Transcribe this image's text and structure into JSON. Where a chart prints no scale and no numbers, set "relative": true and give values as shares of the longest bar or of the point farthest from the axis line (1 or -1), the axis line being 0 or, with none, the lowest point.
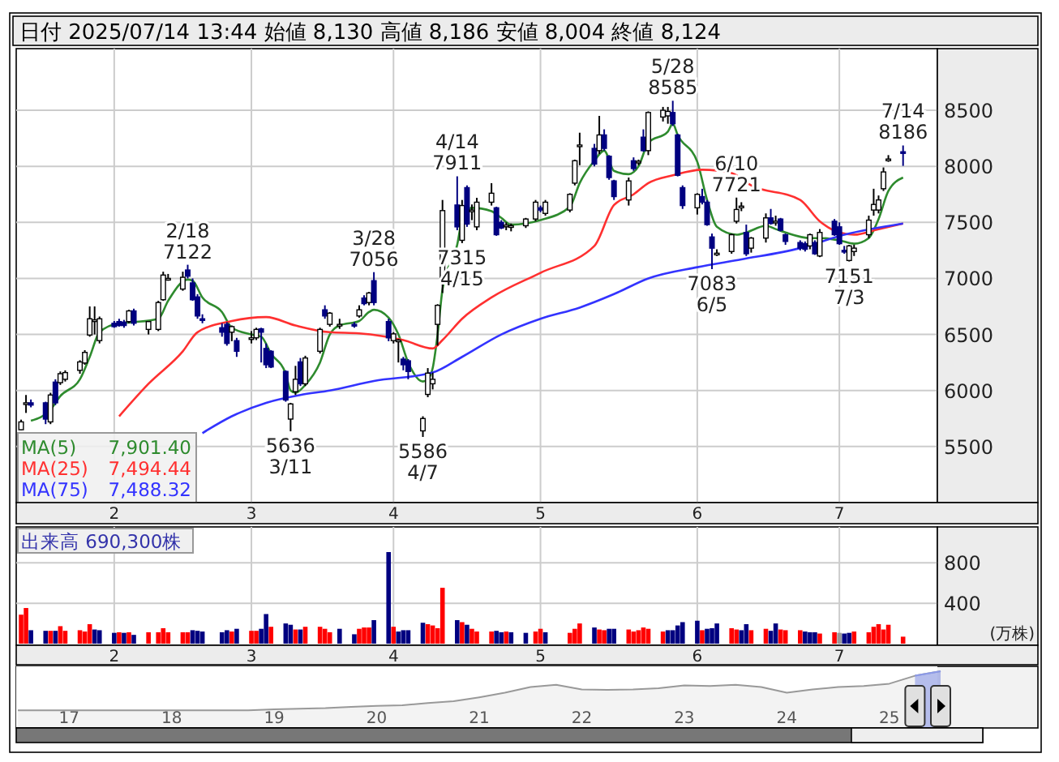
{
  "chart_data": [
    {
      "type": "candlestick",
      "title": "日付 2025/07/14 13:44 始値 8,130 高値 8,186 安値 8,004 終値 8,124",
      "x": [
        "2025-01-15",
        "2025-01-16",
        "2025-01-17",
        "2025-01-20",
        "2025-01-21",
        "2025-01-22",
        "2025-01-23",
        "2025-01-24",
        "2025-01-27",
        "2025-01-28",
        "2025-01-29",
        "2025-01-30",
        "2025-01-31",
        "2025-02-03",
        "2025-02-04",
        "2025-02-05",
        "2025-02-06",
        "2025-02-07",
        "2025-02-10",
        "2025-02-12",
        "2025-02-13",
        "2025-02-14",
        "2025-02-17",
        "2025-02-18",
        "2025-02-19",
        "2025-02-20",
        "2025-02-21",
        "2025-02-25",
        "2025-02-26",
        "2025-02-27",
        "2025-02-28",
        "2025-03-03",
        "2025-03-04",
        "2025-03-05",
        "2025-03-06",
        "2025-03-07",
        "2025-03-10",
        "2025-03-11",
        "2025-03-12",
        "2025-03-13",
        "2025-03-14",
        "2025-03-17",
        "2025-03-18",
        "2025-03-19",
        "2025-03-21",
        "2025-03-24",
        "2025-03-25",
        "2025-03-26",
        "2025-03-27",
        "2025-03-28",
        "2025-03-31",
        "2025-04-01",
        "2025-04-02",
        "2025-04-03",
        "2025-04-04",
        "2025-04-07",
        "2025-04-08",
        "2025-04-09",
        "2025-04-10",
        "2025-04-11",
        "2025-04-14",
        "2025-04-15",
        "2025-04-16",
        "2025-04-17",
        "2025-04-18",
        "2025-04-21",
        "2025-04-22",
        "2025-04-23",
        "2025-04-24",
        "2025-04-25",
        "2025-04-28",
        "2025-04-30",
        "2025-05-01",
        "2025-05-02",
        "2025-05-07",
        "2025-05-08",
        "2025-05-09",
        "2025-05-12",
        "2025-05-13",
        "2025-05-14",
        "2025-05-15",
        "2025-05-16",
        "2025-05-19",
        "2025-05-20",
        "2025-05-21",
        "2025-05-22",
        "2025-05-23",
        "2025-05-26",
        "2025-05-27",
        "2025-05-28",
        "2025-05-29",
        "2025-05-30",
        "2025-06-02",
        "2025-06-03",
        "2025-06-04",
        "2025-06-05",
        "2025-06-06",
        "2025-06-09",
        "2025-06-10",
        "2025-06-11",
        "2025-06-12",
        "2025-06-13",
        "2025-06-16",
        "2025-06-17",
        "2025-06-18",
        "2025-06-19",
        "2025-06-20",
        "2025-06-23",
        "2025-06-24",
        "2025-06-25",
        "2025-06-26",
        "2025-06-27",
        "2025-06-30",
        "2025-07-01",
        "2025-07-02",
        "2025-07-03",
        "2025-07-04",
        "2025-07-07",
        "2025-07-08",
        "2025-07-09",
        "2025-07-10",
        "2025-07-11",
        "2025-07-14"
      ],
      "ohlc": [
        [
          5650,
          5740,
          5645,
          5720
        ],
        [
          5880,
          5960,
          5800,
          5890
        ],
        [
          5890,
          5920,
          5850,
          5870
        ],
        [
          5890,
          5900,
          5700,
          5745
        ],
        [
          5720,
          5980,
          5700,
          5960
        ],
        [
          6075,
          6100,
          5870,
          5890
        ],
        [
          6070,
          6170,
          6050,
          6150
        ],
        [
          6100,
          6180,
          6080,
          6160
        ],
        [
          6180,
          6270,
          6150,
          6255
        ],
        [
          6245,
          6360,
          6230,
          6340
        ],
        [
          6495,
          6750,
          6480,
          6640
        ],
        [
          6620,
          6750,
          6500,
          6630
        ],
        [
          6445,
          6660,
          6420,
          6640
        ],
        [
          6600,
          6620,
          6560,
          6570
        ],
        [
          6615,
          6640,
          6570,
          6580
        ],
        [
          6610,
          6630,
          6560,
          6580
        ],
        [
          6615,
          6720,
          6600,
          6710
        ],
        [
          6710,
          6730,
          6580,
          6600
        ],
        [
          6545,
          6620,
          6500,
          6615
        ],
        [
          6545,
          6800,
          6530,
          6785
        ],
        [
          6810,
          7060,
          6800,
          7030
        ],
        [
          7000,
          7040,
          6980,
          7000
        ],
        [
          6905,
          7060,
          6890,
          7010
        ],
        [
          7075,
          7122,
          7000,
          7020
        ],
        [
          6960,
          7000,
          6800,
          6810
        ],
        [
          6835,
          6860,
          6640,
          6665
        ],
        [
          6640,
          6680,
          6600,
          6630
        ],
        [
          6560,
          6600,
          6480,
          6520
        ],
        [
          6590,
          6610,
          6400,
          6420
        ],
        [
          6520,
          6580,
          6440,
          6570
        ],
        [
          6445,
          6470,
          6300,
          6350
        ],
        [
          6460,
          6530,
          6420,
          6470
        ],
        [
          6470,
          6560,
          6450,
          6545
        ],
        [
          6550,
          6560,
          6250,
          6520
        ],
        [
          6375,
          6420,
          6200,
          6230
        ],
        [
          6350,
          6360,
          6200,
          6210
        ],
        [
          6170,
          6180,
          5900,
          5915
        ],
        [
          5745,
          5890,
          5636,
          5880
        ],
        [
          5990,
          6220,
          5960,
          6100
        ],
        [
          6255,
          6290,
          6040,
          6060
        ],
        [
          6060,
          6310,
          6040,
          6290
        ],
        [
          6350,
          6560,
          6330,
          6545
        ],
        [
          6720,
          6760,
          6640,
          6665
        ],
        [
          6590,
          6700,
          6570,
          6690
        ],
        [
          6580,
          6640,
          6550,
          6590
        ],
        [
          6590,
          6610,
          6560,
          6575
        ],
        [
          6665,
          6760,
          6650,
          6720
        ],
        [
          6825,
          6850,
          6760,
          6775
        ],
        [
          6785,
          6880,
          6760,
          6870
        ],
        [
          6980,
          7056,
          6760,
          6785
        ],
        [
          6615,
          6640,
          6440,
          6470
        ],
        [
          6445,
          6520,
          6420,
          6505
        ],
        [
          6445,
          6460,
          6250,
          6450
        ],
        [
          6280,
          6300,
          6180,
          6230
        ],
        [
          6265,
          6280,
          6100,
          6170
        ],
        [
          5640,
          5770,
          5586,
          5750
        ],
        [
          5965,
          6200,
          5940,
          6155
        ],
        [
          6060,
          6160,
          6010,
          6100
        ],
        [
          6590,
          6770,
          6400,
          6760
        ],
        [
          6955,
          7700,
          6870,
          7605
        ],
        [
          7655,
          7911,
          7430,
          7460
        ],
        [
          7340,
          7700,
          7315,
          7650
        ],
        [
          7810,
          7830,
          7460,
          7485
        ],
        [
          7600,
          7660,
          7520,
          7610
        ],
        [
          7460,
          7720,
          7430,
          7680
        ],
        [
          7680,
          7850,
          7650,
          7760
        ],
        [
          7630,
          7640,
          7380,
          7390
        ],
        [
          7500,
          7520,
          7440,
          7450
        ],
        [
          7470,
          7500,
          7430,
          7475
        ],
        [
          7460,
          7490,
          7420,
          7470
        ],
        [
          7470,
          7540,
          7450,
          7530
        ],
        [
          7530,
          7700,
          7510,
          7680
        ],
        [
          7630,
          7650,
          7590,
          7610
        ],
        [
          7580,
          7700,
          7560,
          7680
        ],
        [
          7610,
          7760,
          7590,
          7750
        ],
        [
          7850,
          8060,
          7830,
          8050
        ],
        [
          8180,
          8300,
          8010,
          8190
        ],
        [
          8160,
          8200,
          8000,
          8020
        ],
        [
          8140,
          8450,
          8110,
          8280
        ],
        [
          8280,
          8330,
          8140,
          8160
        ],
        [
          8090,
          8100,
          7880,
          7900
        ],
        [
          7870,
          7880,
          7700,
          7730
        ],
        [
          7700,
          7900,
          7650,
          7870
        ],
        [
          8050,
          8080,
          7960,
          7980
        ],
        [
          8040,
          8060,
          8010,
          8045
        ],
        [
          8260,
          8330,
          8130,
          8140
        ],
        [
          8140,
          8490,
          8100,
          8480
        ],
        [
          8440,
          8530,
          8400,
          8500
        ],
        [
          8450,
          8530,
          8380,
          8490
        ],
        [
          8480,
          8585,
          8360,
          8380
        ],
        [
          8280,
          8290,
          7910,
          7920
        ],
        [
          7810,
          7830,
          7620,
          7650
        ],
        [
          7630,
          7760,
          7570,
          7750
        ],
        [
          7730,
          7800,
          7660,
          7680
        ],
        [
          7680,
          7700,
          7470,
          7480
        ],
        [
          7370,
          7400,
          7083,
          7270
        ],
        [
          7220,
          7260,
          7200,
          7225
        ],
        [
          7240,
          7400,
          7220,
          7390
        ],
        [
          7510,
          7721,
          7490,
          7615
        ],
        [
          7640,
          7680,
          7600,
          7645
        ],
        [
          7410,
          7480,
          7200,
          7220
        ],
        [
          7270,
          7370,
          7230,
          7360
        ],
        [
          7360,
          7580,
          7320,
          7540
        ],
        [
          7540,
          7620,
          7480,
          7490
        ],
        [
          7500,
          7560,
          7470,
          7510
        ],
        [
          7530,
          7540,
          7420,
          7430
        ],
        [
          7390,
          7400,
          7300,
          7330
        ],
        [
          7320,
          7340,
          7250,
          7270
        ],
        [
          7310,
          7330,
          7240,
          7260
        ],
        [
          7290,
          7400,
          7260,
          7390
        ],
        [
          7320,
          7340,
          7210,
          7220
        ],
        [
          7200,
          7440,
          7190,
          7410
        ],
        [
          7510,
          7530,
          7380,
          7390
        ],
        [
          7460,
          7500,
          7300,
          7310
        ],
        [
          7250,
          7290,
          7220,
          7240
        ],
        [
          7160,
          7300,
          7151,
          7290
        ],
        [
          7240,
          7300,
          7200,
          7270
        ],
        [
          7390,
          7560,
          7360,
          7520
        ],
        [
          7610,
          7800,
          7560,
          7660
        ],
        [
          7610,
          7740,
          7580,
          7700
        ],
        [
          7800,
          7990,
          7780,
          7950
        ],
        [
          8060,
          8100,
          8040,
          8065
        ],
        [
          8130,
          8186,
          8004,
          8124
        ]
      ],
      "series": [
        {
          "name": "MA(5) 7,901.40",
          "type": "line",
          "color": "#2e8b2e",
          "x": [
            "2025-01-17",
            "2025-01-21",
            "2025-01-23",
            "2025-01-27",
            "2025-01-29",
            "2025-01-31",
            "2025-02-04",
            "2025-02-07",
            "2025-02-12",
            "2025-02-14",
            "2025-02-18",
            "2025-02-19",
            "2025-02-21",
            "2025-02-25",
            "2025-02-27",
            "2025-03-03",
            "2025-03-05",
            "2025-03-07",
            "2025-03-10",
            "2025-03-11",
            "2025-03-12",
            "2025-03-14",
            "2025-03-17",
            "2025-03-19",
            "2025-03-21",
            "2025-03-25",
            "2025-03-27",
            "2025-03-28",
            "2025-03-31",
            "2025-04-02",
            "2025-04-04",
            "2025-04-07",
            "2025-04-08",
            "2025-04-09",
            "2025-04-10",
            "2025-04-11",
            "2025-04-14",
            "2025-04-15",
            "2025-04-17",
            "2025-04-21",
            "2025-04-23",
            "2025-04-25",
            "2025-05-01",
            "2025-05-07",
            "2025-05-09",
            "2025-05-12",
            "2025-05-14",
            "2025-05-16",
            "2025-05-19",
            "2025-05-21",
            "2025-05-23",
            "2025-05-27",
            "2025-05-28",
            "2025-05-29",
            "2025-06-02",
            "2025-06-04",
            "2025-06-06",
            "2025-06-10",
            "2025-06-12",
            "2025-06-16",
            "2025-06-18",
            "2025-06-20",
            "2025-06-25",
            "2025-06-27",
            "2025-07-01",
            "2025-07-04",
            "2025-07-07",
            "2025-07-09",
            "2025-07-11",
            "2025-07-14"
          ],
          "values": [
            5730,
            5830,
            5950,
            6100,
            6300,
            6520,
            6600,
            6610,
            6640,
            6800,
            6990,
            6980,
            6830,
            6700,
            6560,
            6500,
            6480,
            6330,
            6150,
            6000,
            5980,
            6050,
            6250,
            6500,
            6580,
            6620,
            6700,
            6720,
            6650,
            6500,
            6250,
            6080,
            6100,
            6200,
            6500,
            6900,
            7300,
            7520,
            7630,
            7600,
            7540,
            7480,
            7520,
            7640,
            7850,
            8050,
            8140,
            7960,
            7930,
            8000,
            8210,
            8310,
            8380,
            8280,
            8040,
            7700,
            7460,
            7390,
            7410,
            7470,
            7440,
            7410,
            7360,
            7360,
            7340,
            7310,
            7360,
            7530,
            7780,
            7900
          ]
        },
        {
          "name": "MA(25) 7,494.44",
          "type": "line",
          "color": "#ff3030",
          "x": [
            "2025-02-04",
            "2025-02-10",
            "2025-02-17",
            "2025-02-20",
            "2025-02-27",
            "2025-03-06",
            "2025-03-12",
            "2025-03-19",
            "2025-03-25",
            "2025-04-03",
            "2025-04-09",
            "2025-04-11",
            "2025-04-15",
            "2025-04-21",
            "2025-05-01",
            "2025-05-12",
            "2025-05-16",
            "2025-05-20",
            "2025-05-23",
            "2025-05-28",
            "2025-06-03",
            "2025-06-09",
            "2025-06-13",
            "2025-06-23",
            "2025-06-27",
            "2025-07-01",
            "2025-07-04",
            "2025-07-09",
            "2025-07-14"
          ],
          "values": [
            5770,
            6060,
            6350,
            6520,
            6620,
            6655,
            6580,
            6520,
            6510,
            6450,
            6375,
            6450,
            6640,
            6830,
            7050,
            7290,
            7655,
            7750,
            7850,
            7920,
            7970,
            7940,
            7830,
            7700,
            7510,
            7410,
            7390,
            7440,
            7490
          ]
        },
        {
          "name": "MA(75) 7,488.32",
          "type": "line",
          "color": "#3333ff",
          "x": [
            "2025-02-21",
            "2025-02-27",
            "2025-03-06",
            "2025-03-13",
            "2025-03-19",
            "2025-03-28",
            "2025-04-09",
            "2025-04-15",
            "2025-04-23",
            "2025-05-01",
            "2025-05-09",
            "2025-05-16",
            "2025-05-23",
            "2025-06-02",
            "2025-06-11",
            "2025-06-23",
            "2025-07-02",
            "2025-07-14"
          ],
          "values": [
            5620,
            5770,
            5890,
            5960,
            6000,
            6085,
            6160,
            6300,
            6500,
            6640,
            6740,
            6860,
            7000,
            7100,
            7170,
            7270,
            7390,
            7490
          ]
        }
      ],
      "xlim": [
        "2025-01-14",
        "2025-07-21"
      ],
      "ylim": [
        5000,
        9050
      ],
      "yticks": [
        5500,
        6000,
        6500,
        7000,
        7500,
        8000,
        8500
      ],
      "xticks": [
        {
          "value": "2025-02-03",
          "label": "2"
        },
        {
          "value": "2025-03-03",
          "label": "3"
        },
        {
          "value": "2025-04-01",
          "label": "4"
        },
        {
          "value": "2025-05-01",
          "label": "5"
        },
        {
          "value": "2025-06-02",
          "label": "6"
        },
        {
          "value": "2025-07-01",
          "label": "7"
        }
      ],
      "grid": true,
      "legend": "bottom left",
      "annotations": [
        {
          "text": "2/18\n7122",
          "x": "2025-02-18",
          "y": 7122
        },
        {
          "text": "5636\n3/11",
          "x": "2025-03-11",
          "y": 5636
        },
        {
          "text": "3/28\n7056",
          "x": "2025-03-28",
          "y": 7056
        },
        {
          "text": "5586\n4/7",
          "x": "2025-04-07",
          "y": 5586
        },
        {
          "text": "4/14\n7911",
          "x": "2025-04-14",
          "y": 7911
        },
        {
          "text": "7315\n4/15",
          "x": "2025-04-15",
          "y": 7315
        },
        {
          "text": "5/28\n8585",
          "x": "2025-05-28",
          "y": 8585
        },
        {
          "text": "7083\n6/5",
          "x": "2025-06-05",
          "y": 7083
        },
        {
          "text": "6/10\n7721",
          "x": "2025-06-10",
          "y": 7721
        },
        {
          "text": "7151\n7/3",
          "x": "2025-07-03",
          "y": 7151
        },
        {
          "text": "7/14\n8186",
          "x": "2025-07-14",
          "y": 8186
        }
      ]
    },
    {
      "type": "bar",
      "x": [
        "2025-01-15",
        "2025-01-16",
        "2025-01-17",
        "2025-01-20",
        "2025-01-21",
        "2025-01-22",
        "2025-01-23",
        "2025-01-24",
        "2025-01-27",
        "2025-01-28",
        "2025-01-29",
        "2025-01-30",
        "2025-01-31",
        "2025-02-03",
        "2025-02-04",
        "2025-02-05",
        "2025-02-06",
        "2025-02-07",
        "2025-02-10",
        "2025-02-12",
        "2025-02-13",
        "2025-02-14",
        "2025-02-17",
        "2025-02-18",
        "2025-02-19",
        "2025-02-20",
        "2025-02-21",
        "2025-02-25",
        "2025-02-26",
        "2025-02-27",
        "2025-02-28",
        "2025-03-03",
        "2025-03-04",
        "2025-03-05",
        "2025-03-06",
        "2025-03-07",
        "2025-03-10",
        "2025-03-11",
        "2025-03-12",
        "2025-03-13",
        "2025-03-14",
        "2025-03-17",
        "2025-03-18",
        "2025-03-19",
        "2025-03-21",
        "2025-03-24",
        "2025-03-25",
        "2025-03-26",
        "2025-03-27",
        "2025-03-28",
        "2025-03-31",
        "2025-04-01",
        "2025-04-02",
        "2025-04-03",
        "2025-04-04",
        "2025-04-07",
        "2025-04-08",
        "2025-04-09",
        "2025-04-10",
        "2025-04-11",
        "2025-04-14",
        "2025-04-15",
        "2025-04-16",
        "2025-04-17",
        "2025-04-18",
        "2025-04-21",
        "2025-04-22",
        "2025-04-23",
        "2025-04-24",
        "2025-04-25",
        "2025-04-28",
        "2025-04-30",
        "2025-05-01",
        "2025-05-02",
        "2025-05-07",
        "2025-05-08",
        "2025-05-09",
        "2025-05-12",
        "2025-05-13",
        "2025-05-14",
        "2025-05-15",
        "2025-05-16",
        "2025-05-19",
        "2025-05-20",
        "2025-05-21",
        "2025-05-22",
        "2025-05-23",
        "2025-05-26",
        "2025-05-27",
        "2025-05-28",
        "2025-05-29",
        "2025-05-30",
        "2025-06-02",
        "2025-06-03",
        "2025-06-04",
        "2025-06-05",
        "2025-06-06",
        "2025-06-09",
        "2025-06-10",
        "2025-06-11",
        "2025-06-12",
        "2025-06-13",
        "2025-06-16",
        "2025-06-17",
        "2025-06-18",
        "2025-06-19",
        "2025-06-20",
        "2025-06-23",
        "2025-06-24",
        "2025-06-25",
        "2025-06-26",
        "2025-06-27",
        "2025-06-30",
        "2025-07-01",
        "2025-07-02",
        "2025-07-03",
        "2025-07-04",
        "2025-07-07",
        "2025-07-08",
        "2025-07-09",
        "2025-07-10",
        "2025-07-11",
        "2025-07-14"
      ],
      "values": [
        287,
        353,
        133,
        127,
        127,
        127,
        173,
        127,
        133,
        120,
        193,
        140,
        133,
        107,
        113,
        107,
        113,
        87,
        113,
        113,
        153,
        113,
        113,
        113,
        133,
        127,
        120,
        113,
        133,
        120,
        147,
        127,
        127,
        147,
        293,
        167,
        200,
        187,
        140,
        140,
        167,
        167,
        147,
        113,
        147,
        93,
        147,
        160,
        160,
        233,
        907,
        167,
        120,
        133,
        133,
        207,
        193,
        180,
        153,
        553,
        233,
        213,
        187,
        147,
        120,
        120,
        127,
        113,
        120,
        113,
        107,
        120,
        147,
        113,
        107,
        147,
        200,
        160,
        140,
        133,
        147,
        147,
        140,
        120,
        133,
        160,
        147,
        120,
        133,
        133,
        180,
        213,
        227,
        133,
        147,
        153,
        200,
        153,
        140,
        133,
        193,
        133,
        147,
        127,
        200,
        140,
        133,
        133,
        120,
        113,
        113,
        100,
        113,
        107,
        100,
        107,
        120,
        113,
        167,
        193,
        140,
        187,
        69.03
      ],
      "colors": [
        "#ff0000",
        "#ff0000",
        "#000080",
        "#000080",
        "#ff0000",
        "#000080",
        "#ff0000",
        "#ff0000",
        "#ff0000",
        "#ff0000",
        "#ff0000",
        "#000080",
        "#000080",
        "#000080",
        "#ff0000",
        "#000080",
        "#ff0000",
        "#000080",
        "#ff0000",
        "#ff0000",
        "#ff0000",
        "#ff0000",
        "#ff0000",
        "#ff0000",
        "#000080",
        "#000080",
        "#000080",
        "#000080",
        "#000080",
        "#ff0000",
        "#000080",
        "#ff0000",
        "#ff0000",
        "#000080",
        "#000080",
        "#ff0000",
        "#000080",
        "#000080",
        "#ff0000",
        "#000080",
        "#ff0000",
        "#ff0000",
        "#ff0000",
        "#ff0000",
        "#000080",
        "#000080",
        "#ff0000",
        "#ff0000",
        "#ff0000",
        "#000080",
        "#000080",
        "#ff0000",
        "#000080",
        "#000080",
        "#000080",
        "#000080",
        "#ff0000",
        "#ff0000",
        "#ff0000",
        "#ff0000",
        "#000080",
        "#ff0000",
        "#000080",
        "#ff0000",
        "#ff0000",
        "#ff0000",
        "#000080",
        "#000080",
        "#ff0000",
        "#000080",
        "#000080",
        "#ff0000",
        "#ff0000",
        "#000080",
        "#ff0000",
        "#ff0000",
        "#ff0000",
        "#000080",
        "#ff0000",
        "#ff0000",
        "#000080",
        "#000080",
        "#ff0000",
        "#ff0000",
        "#ff0000",
        "#ff0000",
        "#ff0000",
        "#ff0000",
        "#000080",
        "#000080",
        "#000080",
        "#000080",
        "#000080",
        "#ff0000",
        "#000080",
        "#000080",
        "#000080",
        "#ff0000",
        "#ff0000",
        "#000080",
        "#000080",
        "#ff0000",
        "#ff0000",
        "#000080",
        "#000080",
        "#ff0000",
        "#ff0000",
        "#ff0000",
        "#000080",
        "#000080",
        "#000080",
        "#ff0000",
        "#ff0000",
        "#999999",
        "#000080",
        "#000080",
        "#ff0000",
        "#ff0000",
        "#ff0000",
        "#ff0000",
        "#ff0000",
        "#ff0000",
        "#ff0000"
      ],
      "xlim": [
        "2025-01-14",
        "2025-07-21"
      ],
      "ylim": [
        0,
        1140
      ],
      "yticks": [
        400,
        800
      ],
      "ylabel": "(万株)",
      "xticks": [
        {
          "value": "2025-02-03",
          "label": "2"
        },
        {
          "value": "2025-03-03",
          "label": "3"
        },
        {
          "value": "2025-04-01",
          "label": "4"
        },
        {
          "value": "2025-05-01",
          "label": "5"
        },
        {
          "value": "2025-06-02",
          "label": "6"
        },
        {
          "value": "2025-07-01",
          "label": "7"
        }
      ],
      "grid": true,
      "annotations": [
        "出来高 690,300株"
      ]
    },
    {
      "type": "area",
      "relative": true,
      "categories": [
        null,
        null,
        "17",
        null,
        null,
        null,
        "18",
        null,
        null,
        null,
        "19",
        null,
        null,
        null,
        "20",
        null,
        null,
        null,
        "21",
        null,
        null,
        null,
        "22",
        null,
        null,
        null,
        "23",
        null,
        null,
        null,
        "24",
        null,
        null,
        null,
        "25",
        null,
        null
      ],
      "series": [
        {
          "type": "area",
          "color": "#999999",
          "values": [
            0.31,
            0.31,
            0.31,
            0.31,
            0.31,
            0.31,
            0.31,
            0.31,
            0.31,
            0.31,
            0.33,
            0.34,
            0.35,
            0.37,
            0.39,
            0.4,
            0.44,
            0.47,
            0.54,
            0.62,
            0.72,
            0.76,
            0.68,
            0.67,
            0.68,
            0.7,
            0.75,
            0.74,
            0.76,
            0.72,
            0.62,
            0.68,
            0.72,
            0.74,
            0.78,
            0.92,
            1
          ]
        },
        {
          "type": "area",
          "color": "#8c9ae8",
          "values": [
            null,
            null,
            null,
            null,
            null,
            null,
            null,
            null,
            null,
            null,
            null,
            null,
            null,
            null,
            null,
            null,
            null,
            null,
            null,
            null,
            null,
            null,
            null,
            null,
            null,
            null,
            null,
            null,
            null,
            null,
            null,
            null,
            null,
            null,
            null,
            0.92,
            1
          ]
        }
      ]
    }
  ]
}
